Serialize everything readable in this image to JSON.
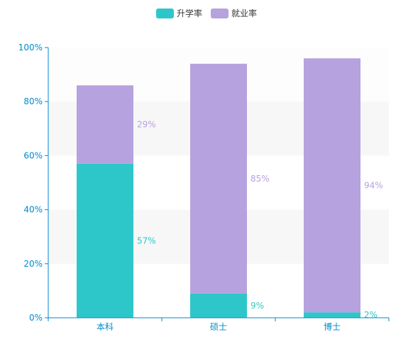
{
  "chart_data": {
    "type": "bar",
    "stacked": true,
    "categories": [
      "本科",
      "硕士",
      "博士"
    ],
    "series": [
      {
        "name": "升学率",
        "values": [
          57,
          9,
          2
        ],
        "labels": [
          "57%",
          "9%",
          "2%"
        ],
        "color": "#2ec7c9"
      },
      {
        "name": "就业率",
        "values": [
          29,
          85,
          94
        ],
        "labels": [
          "29%",
          "85%",
          "94%"
        ],
        "color": "#b6a2de"
      }
    ],
    "ylim": [
      0,
      100
    ],
    "yticks": [
      "0%",
      "20%",
      "40%",
      "60%",
      "80%",
      "100%"
    ],
    "legend_position": "top-center",
    "grid": "alternating horizontal bands"
  },
  "colors": {
    "axis": "#008acd",
    "band": "#f7f7f7"
  }
}
